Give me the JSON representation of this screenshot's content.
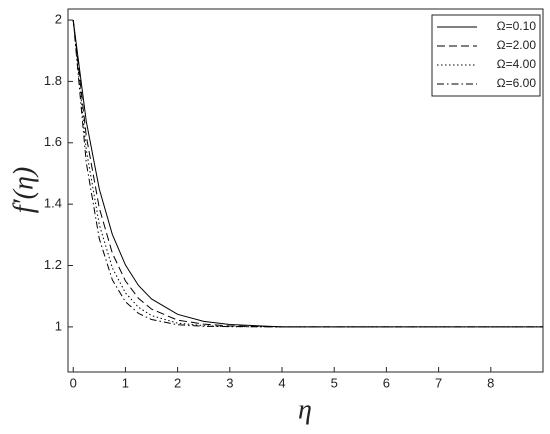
{
  "chart_data": {
    "type": "line",
    "x_label": "η",
    "y_label": "f′(η)",
    "x": [
      0,
      0.25,
      0.5,
      0.75,
      1,
      1.25,
      1.5,
      2,
      2.5,
      3,
      4,
      5,
      6,
      7,
      8,
      9
    ],
    "series": [
      {
        "name": "Ω=0.10",
        "color": "#000000",
        "dash": "solid",
        "values": [
          2,
          1.67,
          1.449,
          1.301,
          1.202,
          1.135,
          1.091,
          1.041,
          1.018,
          1.008,
          1,
          1,
          1,
          1,
          1,
          1
        ]
      },
      {
        "name": "Ω=2.00",
        "color": "#000000",
        "dash": "dashed",
        "values": [
          2,
          1.622,
          1.387,
          1.24,
          1.15,
          1.093,
          1.058,
          1.022,
          1.009,
          1.003,
          1,
          1,
          1,
          1,
          1,
          1
        ]
      },
      {
        "name": "Ω=4.00",
        "color": "#000000",
        "dash": "dotted",
        "values": [
          2,
          1.577,
          1.333,
          1.192,
          1.111,
          1.064,
          1.037,
          1.012,
          1.004,
          1.001,
          1,
          1,
          1,
          1,
          1,
          1
        ]
      },
      {
        "name": "Ω=6.00",
        "color": "#000000",
        "dash": "dashdot",
        "values": [
          2,
          1.535,
          1.287,
          1.153,
          1.082,
          1.044,
          1.024,
          1.007,
          1.002,
          1.001,
          1,
          1,
          1,
          1,
          1,
          1
        ]
      }
    ],
    "xlim": [
      -0.1,
      9
    ],
    "ylim": [
      0.853,
      2.036
    ],
    "xticks": [
      0,
      1,
      2,
      3,
      4,
      5,
      6,
      7,
      8
    ],
    "yticks": [
      1,
      1.2,
      1.4,
      1.6,
      1.8,
      2
    ],
    "grid": false,
    "legend": "upper right"
  }
}
